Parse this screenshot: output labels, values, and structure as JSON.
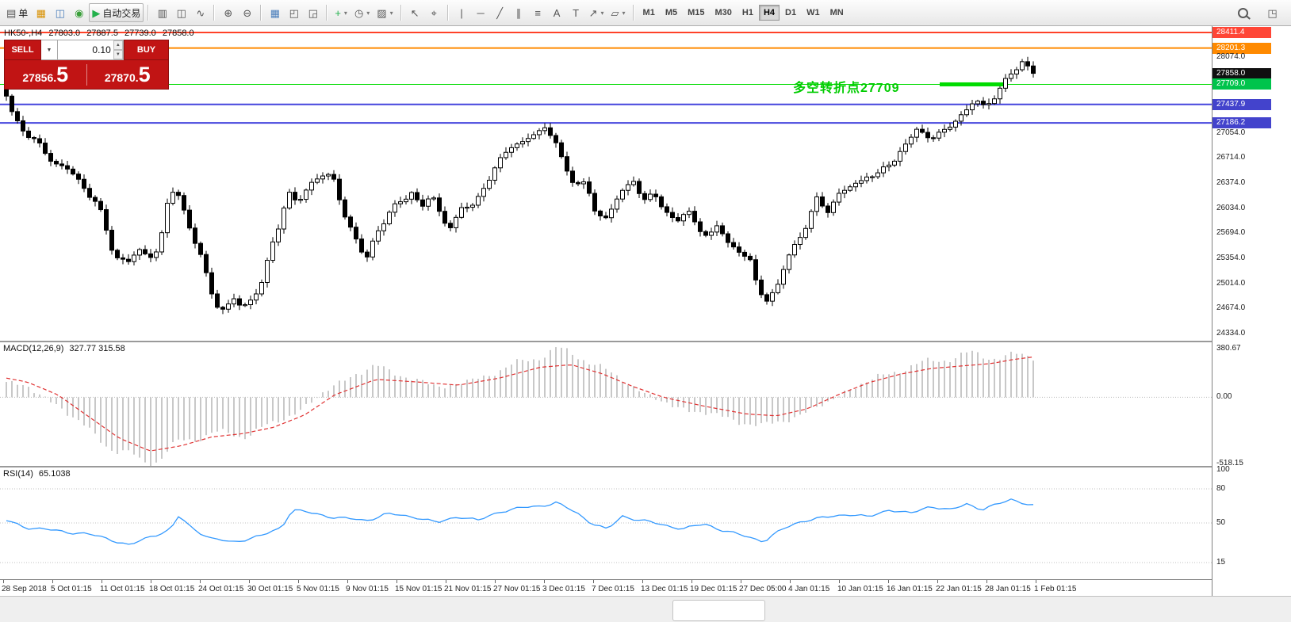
{
  "toolbar": {
    "groups": [
      {
        "items": [
          {
            "name": "new-order",
            "glyph": "▤",
            "label": "单"
          },
          {
            "name": "charts-window",
            "glyph": "▦",
            "color": "#d89000"
          },
          {
            "name": "profiles",
            "glyph": "◫",
            "color": "#4a7ebb"
          },
          {
            "name": "info",
            "glyph": "◉",
            "color": "#3aa03a"
          },
          {
            "name": "auto-trading",
            "glyph": "▶",
            "label": "自动交易",
            "color": "#22b14c",
            "framed": true
          }
        ]
      },
      {
        "items": [
          {
            "name": "bar-chart",
            "glyph": "▥"
          },
          {
            "name": "candlestick-chart",
            "glyph": "◫"
          },
          {
            "name": "line-chart",
            "glyph": "∿"
          }
        ]
      },
      {
        "items": [
          {
            "name": "zoom-in",
            "glyph": "⊕"
          },
          {
            "name": "zoom-out",
            "glyph": "⊖"
          }
        ]
      },
      {
        "items": [
          {
            "name": "grid",
            "glyph": "▦",
            "color": "#4a7ebb"
          },
          {
            "name": "tile-windows",
            "glyph": "◰"
          },
          {
            "name": "cascade-windows",
            "glyph": "◲"
          }
        ]
      },
      {
        "items": [
          {
            "name": "indicators",
            "glyph": "+",
            "color": "#22b14c",
            "dropdown": true
          },
          {
            "name": "periods",
            "glyph": "◷",
            "dropdown": true
          },
          {
            "name": "templates",
            "glyph": "▨",
            "dropdown": true
          }
        ]
      },
      {
        "items": [
          {
            "name": "cursor",
            "glyph": "↖"
          },
          {
            "name": "crosshair",
            "glyph": "⌖"
          }
        ]
      },
      {
        "items": [
          {
            "name": "vertical-line",
            "glyph": "|"
          },
          {
            "name": "horizontal-line",
            "glyph": "─"
          },
          {
            "name": "trendline",
            "glyph": "╱"
          },
          {
            "name": "equidistant-channel",
            "glyph": "∥"
          },
          {
            "name": "fibonacci",
            "glyph": "≡"
          },
          {
            "name": "text",
            "glyph": "A"
          },
          {
            "name": "text-label",
            "glyph": "T"
          },
          {
            "name": "arrows",
            "glyph": "↗",
            "dropdown": true
          },
          {
            "name": "shapes",
            "glyph": "▱",
            "dropdown": true
          }
        ]
      }
    ],
    "timeframes": {
      "items": [
        "M1",
        "M5",
        "M15",
        "M30",
        "H1",
        "H4",
        "D1",
        "W1",
        "MN"
      ],
      "active": "H4"
    },
    "right_items": [
      {
        "name": "search",
        "css": "mag"
      },
      {
        "name": "quick-panel",
        "glyph": "◳"
      }
    ]
  },
  "ohlc": {
    "symbol_period": "HK50-,H4",
    "open": "27803.0",
    "high": "27887.5",
    "low": "27739.0",
    "close": "27858.0"
  },
  "trade_panel": {
    "sell_label": "SELL",
    "buy_label": "BUY",
    "volume": "0.10",
    "sell_price_base": "27856.",
    "sell_price_big": "5",
    "buy_price_base": "27870.",
    "buy_price_big": "5"
  },
  "macd_panel": {
    "name": "MACD(12,26,9)",
    "values": "327.77 315.58"
  },
  "rsi_panel": {
    "name": "RSI(14)",
    "values": "65.1038"
  },
  "chart_data": {
    "type": "candlestick",
    "symbol": "HK50-",
    "period": "H4",
    "price_axis": {
      "top": 28411.4,
      "bottom": 24334.0
    },
    "levels": [
      {
        "price": 28411.4,
        "color": "#ff4228",
        "width": 2
      },
      {
        "price": 28201.3,
        "color": "#ff8a00",
        "width": 2
      },
      {
        "price": 27709.0,
        "color": "#00dc00",
        "width": 1
      },
      {
        "price": 27437.9,
        "color": "#4444dd",
        "width": 2
      },
      {
        "price": 27186.2,
        "color": "#4444dd",
        "width": 2
      }
    ],
    "highlight_segment": {
      "price": 27709.0,
      "color": "#00dc00"
    },
    "annotation": {
      "text": "多空转折点27709",
      "color": "#00cc00"
    },
    "first_open": 27900,
    "last_close": 27858.0,
    "price_path": [
      [
        0,
        27550
      ],
      [
        0.006,
        27300
      ],
      [
        0.012,
        27180
      ],
      [
        0.02,
        27050
      ],
      [
        0.03,
        26900
      ],
      [
        0.04,
        26750
      ],
      [
        0.05,
        26620
      ],
      [
        0.06,
        26560
      ],
      [
        0.07,
        26400
      ],
      [
        0.08,
        26250
      ],
      [
        0.088,
        26100
      ],
      [
        0.095,
        25850
      ],
      [
        0.1,
        25550
      ],
      [
        0.108,
        25380
      ],
      [
        0.118,
        25300
      ],
      [
        0.128,
        25450
      ],
      [
        0.138,
        25380
      ],
      [
        0.148,
        25500
      ],
      [
        0.152,
        25700
      ],
      [
        0.158,
        26150
      ],
      [
        0.165,
        26330
      ],
      [
        0.172,
        26050
      ],
      [
        0.18,
        25700
      ],
      [
        0.19,
        25350
      ],
      [
        0.198,
        24950
      ],
      [
        0.205,
        24750
      ],
      [
        0.213,
        24630
      ],
      [
        0.222,
        24800
      ],
      [
        0.23,
        24700
      ],
      [
        0.24,
        24820
      ],
      [
        0.25,
        25050
      ],
      [
        0.258,
        25500
      ],
      [
        0.266,
        25850
      ],
      [
        0.274,
        26250
      ],
      [
        0.283,
        26080
      ],
      [
        0.295,
        26350
      ],
      [
        0.306,
        26500
      ],
      [
        0.318,
        26420
      ],
      [
        0.33,
        25950
      ],
      [
        0.34,
        25600
      ],
      [
        0.35,
        25320
      ],
      [
        0.36,
        25700
      ],
      [
        0.372,
        25950
      ],
      [
        0.383,
        26100
      ],
      [
        0.394,
        26280
      ],
      [
        0.404,
        26020
      ],
      [
        0.414,
        26220
      ],
      [
        0.424,
        25920
      ],
      [
        0.434,
        25760
      ],
      [
        0.445,
        26050
      ],
      [
        0.456,
        26120
      ],
      [
        0.468,
        26350
      ],
      [
        0.479,
        26650
      ],
      [
        0.49,
        26900
      ],
      [
        0.502,
        26870
      ],
      [
        0.513,
        27060
      ],
      [
        0.524,
        27120
      ],
      [
        0.534,
        26950
      ],
      [
        0.543,
        26600
      ],
      [
        0.553,
        26400
      ],
      [
        0.564,
        26330
      ],
      [
        0.574,
        25980
      ],
      [
        0.584,
        25900
      ],
      [
        0.594,
        26150
      ],
      [
        0.603,
        26280
      ],
      [
        0.611,
        26440
      ],
      [
        0.621,
        26120
      ],
      [
        0.631,
        26220
      ],
      [
        0.641,
        26000
      ],
      [
        0.653,
        25870
      ],
      [
        0.664,
        25960
      ],
      [
        0.674,
        25800
      ],
      [
        0.684,
        25620
      ],
      [
        0.693,
        25800
      ],
      [
        0.703,
        25560
      ],
      [
        0.714,
        25460
      ],
      [
        0.724,
        25300
      ],
      [
        0.731,
        24980
      ],
      [
        0.741,
        24800
      ],
      [
        0.75,
        24920
      ],
      [
        0.76,
        25340
      ],
      [
        0.77,
        25600
      ],
      [
        0.78,
        25820
      ],
      [
        0.789,
        26140
      ],
      [
        0.8,
        26020
      ],
      [
        0.81,
        26200
      ],
      [
        0.819,
        26300
      ],
      [
        0.828,
        26360
      ],
      [
        0.838,
        26500
      ],
      [
        0.847,
        26420
      ],
      [
        0.857,
        26640
      ],
      [
        0.866,
        26700
      ],
      [
        0.876,
        26900
      ],
      [
        0.886,
        27080
      ],
      [
        0.895,
        27040
      ],
      [
        0.905,
        27000
      ],
      [
        0.914,
        27060
      ],
      [
        0.924,
        27240
      ],
      [
        0.934,
        27340
      ],
      [
        0.943,
        27490
      ],
      [
        0.952,
        27400
      ],
      [
        0.962,
        27560
      ],
      [
        0.971,
        27700
      ],
      [
        0.981,
        27890
      ],
      [
        0.99,
        28040
      ],
      [
        1,
        27858
      ]
    ],
    "price_scale": [
      {
        "label": "28411.4",
        "price": 28411.4,
        "badge": "#ff4636"
      },
      {
        "label": "28201.3",
        "price": 28201.3,
        "badge": "#ff8a00"
      },
      {
        "label": "28074.0",
        "price": 28074.0
      },
      {
        "label": "27858.0",
        "price": 27858.0,
        "badge": "#101010"
      },
      {
        "label": "27709.0",
        "price": 27709.0,
        "badge": "#00c44c"
      },
      {
        "label": "27437.9",
        "price": 27437.9,
        "badge": "#4343cc"
      },
      {
        "label": "27186.2",
        "price": 27186.2,
        "badge": "#4343cc"
      },
      {
        "label": "27054.0",
        "price": 27054.0
      },
      {
        "label": "26714.0",
        "price": 26714.0
      },
      {
        "label": "26374.0",
        "price": 26374.0
      },
      {
        "label": "26034.0",
        "price": 26034.0
      },
      {
        "label": "25694.0",
        "price": 25694.0
      },
      {
        "label": "25354.0",
        "price": 25354.0
      },
      {
        "label": "25014.0",
        "price": 25014.0
      },
      {
        "label": "24674.0",
        "price": 24674.0
      },
      {
        "label": "24334.0",
        "price": 24334.0
      }
    ],
    "macd": {
      "max": 380.67,
      "min": -518.15,
      "hist": [
        [
          0,
          120
        ],
        [
          0.02,
          80
        ],
        [
          0.05,
          -60
        ],
        [
          0.08,
          -260
        ],
        [
          0.11,
          -430
        ],
        [
          0.13,
          -500
        ],
        [
          0.15,
          -470
        ],
        [
          0.17,
          -350
        ],
        [
          0.2,
          -280
        ],
        [
          0.23,
          -300
        ],
        [
          0.26,
          -210
        ],
        [
          0.29,
          -80
        ],
        [
          0.31,
          40
        ],
        [
          0.34,
          190
        ],
        [
          0.36,
          240
        ],
        [
          0.39,
          160
        ],
        [
          0.42,
          80
        ],
        [
          0.45,
          120
        ],
        [
          0.48,
          210
        ],
        [
          0.51,
          300
        ],
        [
          0.535,
          370
        ],
        [
          0.56,
          320
        ],
        [
          0.59,
          180
        ],
        [
          0.62,
          40
        ],
        [
          0.65,
          -80
        ],
        [
          0.68,
          -120
        ],
        [
          0.71,
          -180
        ],
        [
          0.735,
          -230
        ],
        [
          0.77,
          -150
        ],
        [
          0.8,
          -40
        ],
        [
          0.82,
          60
        ],
        [
          0.85,
          160
        ],
        [
          0.88,
          240
        ],
        [
          0.91,
          300
        ],
        [
          0.94,
          335
        ],
        [
          0.97,
          315
        ],
        [
          1,
          327.77
        ]
      ],
      "signal": [
        [
          0,
          150
        ],
        [
          0.02,
          120
        ],
        [
          0.05,
          20
        ],
        [
          0.08,
          -150
        ],
        [
          0.11,
          -320
        ],
        [
          0.14,
          -420
        ],
        [
          0.17,
          -380
        ],
        [
          0.2,
          -310
        ],
        [
          0.23,
          -285
        ],
        [
          0.26,
          -235
        ],
        [
          0.29,
          -140
        ],
        [
          0.32,
          20
        ],
        [
          0.36,
          140
        ],
        [
          0.4,
          120
        ],
        [
          0.44,
          95
        ],
        [
          0.48,
          150
        ],
        [
          0.52,
          235
        ],
        [
          0.55,
          255
        ],
        [
          0.58,
          185
        ],
        [
          0.61,
          85
        ],
        [
          0.64,
          0
        ],
        [
          0.68,
          -70
        ],
        [
          0.72,
          -130
        ],
        [
          0.75,
          -145
        ],
        [
          0.78,
          -90
        ],
        [
          0.81,
          20
        ],
        [
          0.84,
          115
        ],
        [
          0.87,
          180
        ],
        [
          0.9,
          225
        ],
        [
          0.93,
          245
        ],
        [
          0.96,
          265
        ],
        [
          0.98,
          295
        ],
        [
          1,
          315.58
        ]
      ]
    },
    "macd_scale": [
      {
        "label": "380.67",
        "v": 380.67
      },
      {
        "label": "0.00",
        "v": 0
      },
      {
        "label": "-518.15",
        "v": -518.15
      }
    ],
    "rsi": {
      "levels": [
        80,
        50,
        15
      ],
      "path": [
        [
          0,
          52
        ],
        [
          0.02,
          46
        ],
        [
          0.05,
          43
        ],
        [
          0.08,
          40
        ],
        [
          0.1,
          36
        ],
        [
          0.12,
          30
        ],
        [
          0.14,
          38
        ],
        [
          0.16,
          44
        ],
        [
          0.168,
          56
        ],
        [
          0.18,
          46
        ],
        [
          0.2,
          36
        ],
        [
          0.22,
          33
        ],
        [
          0.25,
          39
        ],
        [
          0.268,
          46
        ],
        [
          0.278,
          62
        ],
        [
          0.3,
          58
        ],
        [
          0.32,
          55
        ],
        [
          0.35,
          52
        ],
        [
          0.37,
          58
        ],
        [
          0.4,
          55
        ],
        [
          0.42,
          50
        ],
        [
          0.44,
          56
        ],
        [
          0.46,
          52
        ],
        [
          0.48,
          60
        ],
        [
          0.5,
          63
        ],
        [
          0.52,
          65
        ],
        [
          0.535,
          68
        ],
        [
          0.555,
          59
        ],
        [
          0.57,
          50
        ],
        [
          0.585,
          44
        ],
        [
          0.6,
          56
        ],
        [
          0.62,
          52
        ],
        [
          0.64,
          48
        ],
        [
          0.66,
          45
        ],
        [
          0.68,
          49
        ],
        [
          0.7,
          43
        ],
        [
          0.72,
          38
        ],
        [
          0.738,
          34
        ],
        [
          0.755,
          44
        ],
        [
          0.775,
          52
        ],
        [
          0.8,
          55
        ],
        [
          0.82,
          58
        ],
        [
          0.84,
          55
        ],
        [
          0.86,
          62
        ],
        [
          0.88,
          58
        ],
        [
          0.9,
          65
        ],
        [
          0.92,
          61
        ],
        [
          0.935,
          67
        ],
        [
          0.95,
          62
        ],
        [
          0.965,
          66
        ],
        [
          0.978,
          71
        ],
        [
          0.99,
          68
        ],
        [
          1,
          65.1
        ]
      ]
    },
    "rsi_scale": [
      {
        "label": "100",
        "v": 100
      },
      {
        "label": "80",
        "v": 80
      },
      {
        "label": "50",
        "v": 50
      },
      {
        "label": "15",
        "v": 15
      }
    ],
    "time_labels": [
      "28 Sep 2018",
      "5 Oct 01:15",
      "11 Oct 01:15",
      "18 Oct 01:15",
      "24 Oct 01:15",
      "30 Oct 01:15",
      "5 Nov 01:15",
      "9 Nov 01:15",
      "15 Nov 01:15",
      "21 Nov 01:15",
      "27 Nov 01:15",
      "3 Dec 01:15",
      "7 Dec 01:15",
      "13 Dec 01:15",
      "19 Dec 01:15",
      "27 Dec 05:00",
      "4 Jan 01:15",
      "10 Jan 01:15",
      "16 Jan 01:15",
      "22 Jan 01:15",
      "28 Jan 01:15",
      "1 Feb 01:15"
    ]
  }
}
